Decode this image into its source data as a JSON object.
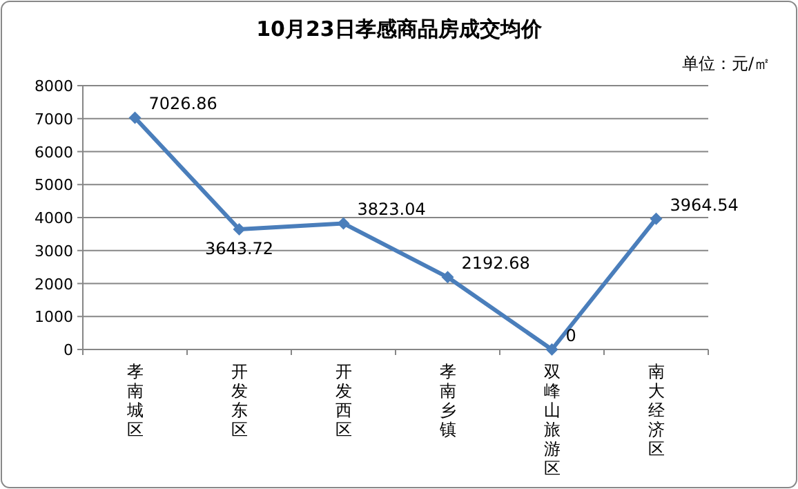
{
  "chart_data": {
    "type": "line",
    "title": "10月23日孝感商品房成交均价",
    "annotations": [
      "单位：元/㎡"
    ],
    "categories": [
      "孝南城区",
      "开发东区",
      "开发西区",
      "孝南乡镇",
      "双峰山旅游区",
      "南大经济区"
    ],
    "series": [
      {
        "color": "#4a7ebb",
        "values": [
          7026.86,
          3643.72,
          3823.04,
          2192.68,
          0,
          3964.54
        ]
      }
    ],
    "ylim": [
      0,
      8000
    ],
    "yticks": [
      0,
      1000,
      2000,
      3000,
      4000,
      5000,
      6000,
      7000,
      8000
    ],
    "grid": "y",
    "marker": "diamond",
    "line_style": "solid",
    "data_labels": true
  }
}
